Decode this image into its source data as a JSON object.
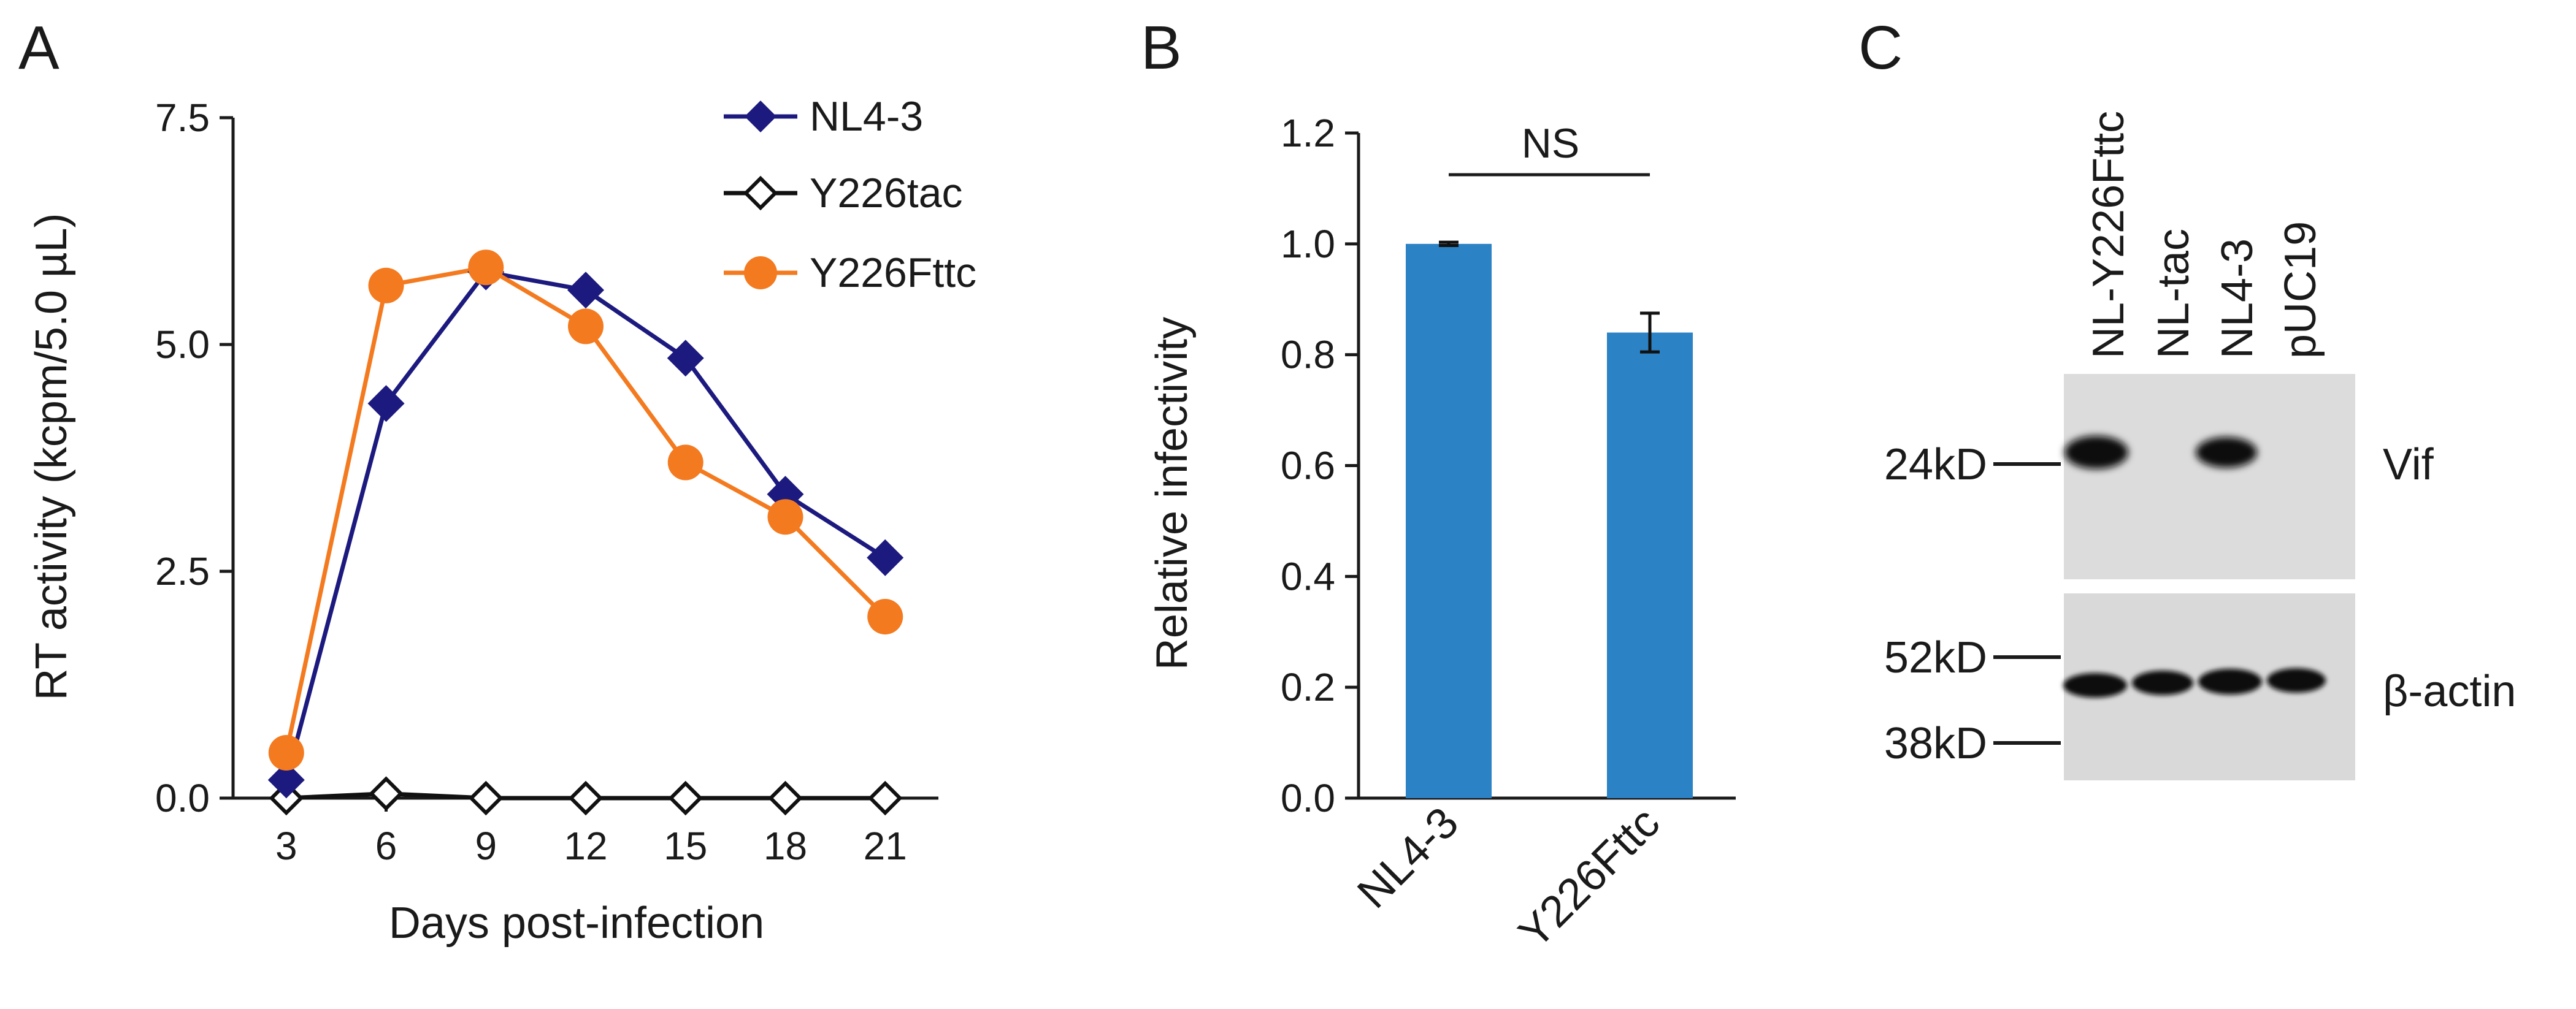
{
  "panels": {
    "a": "A",
    "b": "B",
    "c": "C"
  },
  "chart_data": [
    {
      "type": "line",
      "panel": "A",
      "xlabel": "Days post-infection",
      "ylabel": "RT activity (kcpm/5.0 µL)",
      "x": [
        3,
        6,
        9,
        12,
        15,
        18,
        21
      ],
      "x_ticks": [
        "3",
        "6",
        "9",
        "12",
        "15",
        "18",
        "21"
      ],
      "xlim": [
        1.4,
        22.6
      ],
      "ylim": [
        0,
        7.5
      ],
      "y_ticks": [
        "0.0",
        "2.5",
        "5.0",
        "7.5"
      ],
      "y_tick_values": [
        0,
        2.5,
        5,
        7.5
      ],
      "legend_position": "top-right",
      "series": [
        {
          "name": "NL4-3",
          "marker": "filled-diamond",
          "color": "#1c1a7e",
          "values": [
            0.2,
            4.35,
            5.8,
            5.6,
            4.85,
            3.35,
            2.65
          ]
        },
        {
          "name": "Y226tac",
          "marker": "open-diamond",
          "color": "#111111",
          "values": [
            0.0,
            0.05,
            0.0,
            0.0,
            0.0,
            0.0,
            0.0
          ]
        },
        {
          "name": "Y226Fttc",
          "marker": "filled-circle",
          "color": "#f47a20",
          "values": [
            0.5,
            5.65,
            5.85,
            5.2,
            3.7,
            3.1,
            2.0
          ]
        }
      ]
    },
    {
      "type": "bar",
      "panel": "B",
      "ylabel": "Relative infectivity",
      "categories": [
        "NL4-3",
        "Y226Fttc"
      ],
      "values": [
        1.0,
        0.84
      ],
      "errors": [
        0.003,
        0.035
      ],
      "ylim": [
        0,
        1.2
      ],
      "y_ticks": [
        "0.0",
        "0.2",
        "0.4",
        "0.6",
        "0.8",
        "1.0",
        "1.2"
      ],
      "y_tick_values": [
        0,
        0.2,
        0.4,
        0.6,
        0.8,
        1.0,
        1.2
      ],
      "bar_color": "#2b82c4",
      "annotation": "NS"
    }
  ],
  "blot": {
    "lanes": [
      "NL-Y226Fttc",
      "NL-tac",
      "NL4-3",
      "pUC19"
    ],
    "vif": {
      "marker": "24kD",
      "label": "Vif",
      "band_present": [
        true,
        false,
        true,
        false
      ]
    },
    "actin": {
      "markers": [
        "52kD",
        "38kD"
      ],
      "label": "β-actin",
      "band_present": [
        true,
        true,
        true,
        true
      ]
    }
  }
}
